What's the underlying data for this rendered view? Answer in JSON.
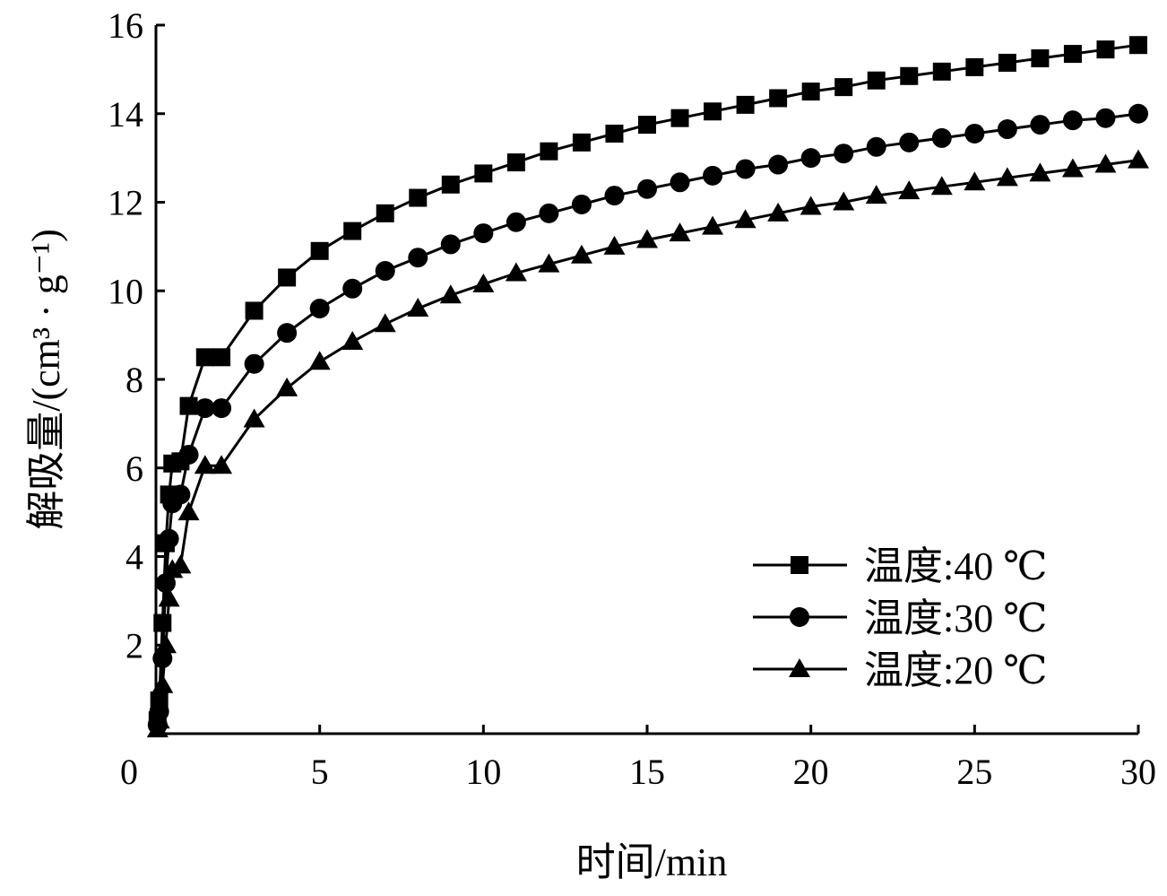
{
  "chart_data": {
    "type": "line",
    "xlabel": "时间/min",
    "ylabel": "解吸量/(cm³ · g⁻¹)",
    "xlim": [
      0,
      30
    ],
    "ylim": [
      0,
      16
    ],
    "x_ticks": [
      "0",
      "5",
      "10",
      "15",
      "20",
      "25",
      "30"
    ],
    "y_ticks": [
      "2",
      "4",
      "6",
      "8",
      "10",
      "12",
      "14",
      "16"
    ],
    "grid": false,
    "legend_position": "bottom-right",
    "x": [
      0.05,
      0.1,
      0.2,
      0.3,
      0.4,
      0.5,
      0.75,
      1,
      1.5,
      2,
      3,
      4,
      5,
      6,
      7,
      8,
      9,
      10,
      11,
      12,
      13,
      14,
      15,
      16,
      17,
      18,
      19,
      20,
      21,
      22,
      23,
      24,
      25,
      26,
      27,
      28,
      29,
      30
    ],
    "series": [
      {
        "name": "温度:40 ℃",
        "marker": "square",
        "values": [
          0.3,
          0.75,
          2.5,
          4.3,
          5.4,
          6.1,
          6.15,
          7.4,
          8.5,
          8.5,
          9.55,
          10.3,
          10.9,
          11.35,
          11.75,
          12.1,
          12.4,
          12.65,
          12.9,
          13.15,
          13.35,
          13.55,
          13.75,
          13.9,
          14.05,
          14.2,
          14.35,
          14.5,
          14.6,
          14.75,
          14.85,
          14.95,
          15.05,
          15.15,
          15.25,
          15.35,
          15.45,
          15.55
        ]
      },
      {
        "name": "温度:30 ℃",
        "marker": "circle",
        "values": [
          0.2,
          0.5,
          1.7,
          3.4,
          4.4,
          5.2,
          5.4,
          6.3,
          7.35,
          7.35,
          8.35,
          9.05,
          9.6,
          10.05,
          10.45,
          10.75,
          11.05,
          11.3,
          11.55,
          11.75,
          11.95,
          12.15,
          12.3,
          12.45,
          12.6,
          12.75,
          12.85,
          13.0,
          13.1,
          13.25,
          13.35,
          13.45,
          13.55,
          13.65,
          13.75,
          13.85,
          13.9,
          14.0
        ]
      },
      {
        "name": "温度:20 ℃",
        "marker": "triangle",
        "values": [
          0.1,
          0.3,
          1.1,
          2.0,
          3.05,
          3.7,
          3.8,
          5.0,
          6.05,
          6.05,
          7.1,
          7.8,
          8.4,
          8.85,
          9.25,
          9.6,
          9.9,
          10.15,
          10.4,
          10.6,
          10.8,
          11.0,
          11.15,
          11.3,
          11.45,
          11.6,
          11.75,
          11.9,
          12.0,
          12.15,
          12.25,
          12.35,
          12.45,
          12.55,
          12.65,
          12.75,
          12.85,
          12.95
        ]
      }
    ]
  }
}
